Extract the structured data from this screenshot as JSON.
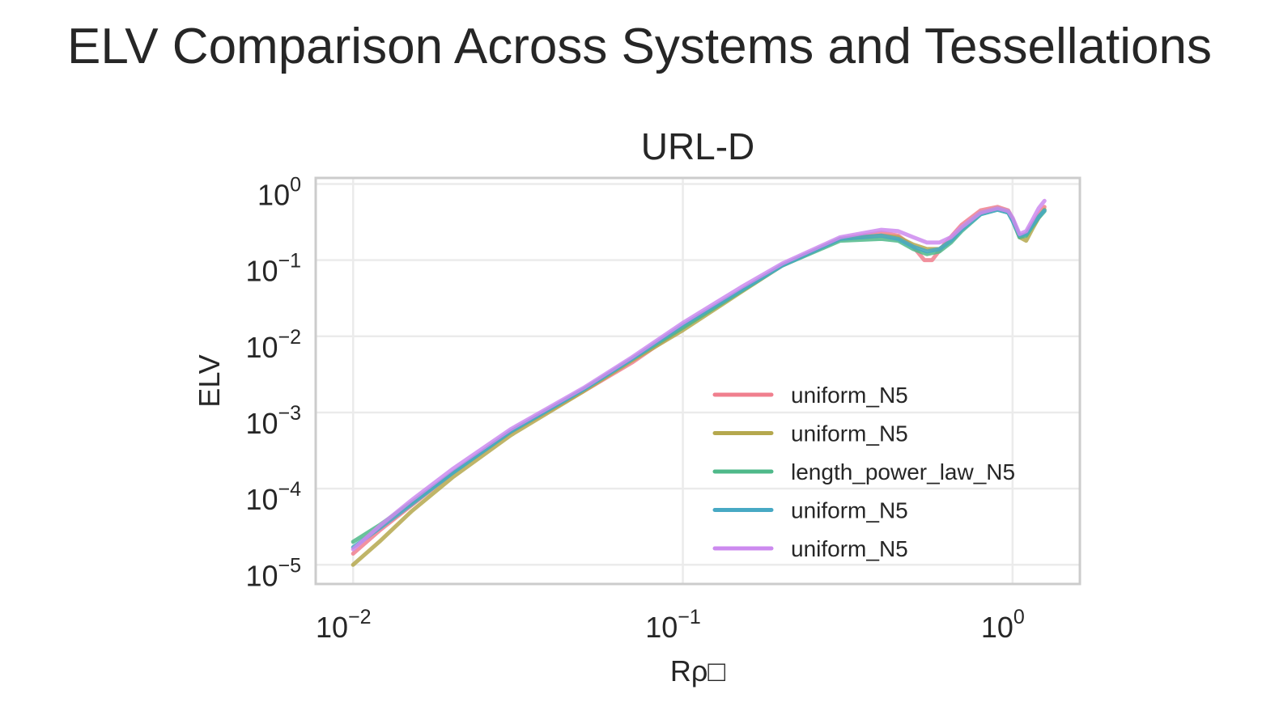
{
  "figure": {
    "title": "ELV Comparison Across Systems and Tessellations"
  },
  "chart_data": {
    "type": "line",
    "title": "URL-D",
    "xlabel": "Rρ□",
    "ylabel": "ELV",
    "xscale": "log",
    "yscale": "log",
    "xlim": [
      0.0077,
      1.6
    ],
    "ylim": [
      5.6e-06,
      1.2
    ],
    "xticks": [
      {
        "value": 0.01,
        "base": "10",
        "exp": "−2"
      },
      {
        "value": 0.1,
        "base": "10",
        "exp": "−1"
      },
      {
        "value": 1,
        "base": "10",
        "exp": "0"
      }
    ],
    "yticks": [
      {
        "value": 1,
        "base": "10",
        "exp": "0"
      },
      {
        "value": 0.1,
        "base": "10",
        "exp": "−1"
      },
      {
        "value": 0.01,
        "base": "10",
        "exp": "−2"
      },
      {
        "value": 0.001,
        "base": "10",
        "exp": "−3"
      },
      {
        "value": 0.0001,
        "base": "10",
        "exp": "−4"
      },
      {
        "value": 1e-05,
        "base": "10",
        "exp": "−5"
      }
    ],
    "grid": true,
    "legend_position": "lower-right",
    "colors": {
      "axis_frame": "#cccccc",
      "grid": "#ebebeb"
    },
    "series": [
      {
        "name": "uniform_N5",
        "color": "#f07f8e",
        "x": [
          0.01,
          0.012,
          0.015,
          0.02,
          0.03,
          0.05,
          0.07,
          0.1,
          0.15,
          0.2,
          0.3,
          0.4,
          0.45,
          0.5,
          0.54,
          0.57,
          0.62,
          0.7,
          0.8,
          0.9,
          0.97,
          1.0,
          1.05,
          1.1,
          1.15,
          1.2,
          1.25
        ],
        "y": [
          1.4e-05,
          2.8e-05,
          6e-05,
          0.00016,
          0.00055,
          0.0019,
          0.0045,
          0.013,
          0.04,
          0.085,
          0.19,
          0.23,
          0.21,
          0.15,
          0.1,
          0.1,
          0.16,
          0.29,
          0.45,
          0.5,
          0.45,
          0.35,
          0.2,
          0.22,
          0.3,
          0.4,
          0.5
        ]
      },
      {
        "name": "uniform_N5",
        "color": "#b5a84e",
        "x": [
          0.01,
          0.012,
          0.015,
          0.02,
          0.03,
          0.05,
          0.07,
          0.1,
          0.15,
          0.2,
          0.3,
          0.4,
          0.45,
          0.5,
          0.55,
          0.6,
          0.65,
          0.7,
          0.8,
          0.9,
          0.97,
          1.0,
          1.05,
          1.1,
          1.15,
          1.2,
          1.25
        ],
        "y": [
          1e-05,
          2e-05,
          5e-05,
          0.00014,
          0.0005,
          0.0019,
          0.0048,
          0.012,
          0.038,
          0.085,
          0.19,
          0.21,
          0.2,
          0.16,
          0.14,
          0.14,
          0.18,
          0.26,
          0.42,
          0.48,
          0.44,
          0.34,
          0.2,
          0.18,
          0.26,
          0.36,
          0.46
        ]
      },
      {
        "name": "length_power_law_N5",
        "color": "#4fb98a",
        "x": [
          0.01,
          0.012,
          0.015,
          0.02,
          0.03,
          0.05,
          0.07,
          0.1,
          0.15,
          0.2,
          0.3,
          0.4,
          0.45,
          0.5,
          0.55,
          0.6,
          0.65,
          0.7,
          0.8,
          0.9,
          0.97,
          1.0,
          1.05,
          1.1,
          1.15,
          1.2,
          1.25
        ],
        "y": [
          2e-05,
          3.3e-05,
          6.5e-05,
          0.00016,
          0.00056,
          0.002,
          0.005,
          0.013,
          0.039,
          0.085,
          0.18,
          0.19,
          0.18,
          0.14,
          0.12,
          0.13,
          0.17,
          0.24,
          0.4,
          0.46,
          0.42,
          0.33,
          0.2,
          0.21,
          0.28,
          0.36,
          0.44
        ]
      },
      {
        "name": "uniform_N5",
        "color": "#47a9c4",
        "x": [
          0.01,
          0.012,
          0.015,
          0.02,
          0.03,
          0.05,
          0.07,
          0.1,
          0.15,
          0.2,
          0.3,
          0.4,
          0.45,
          0.5,
          0.55,
          0.6,
          0.65,
          0.7,
          0.8,
          0.9,
          0.97,
          1.0,
          1.05,
          1.1,
          1.15,
          1.2,
          1.25
        ],
        "y": [
          1.7e-05,
          3e-05,
          6.2e-05,
          0.00016,
          0.00056,
          0.002,
          0.005,
          0.014,
          0.04,
          0.085,
          0.19,
          0.21,
          0.19,
          0.15,
          0.13,
          0.14,
          0.18,
          0.25,
          0.4,
          0.46,
          0.42,
          0.33,
          0.21,
          0.22,
          0.29,
          0.37,
          0.45
        ]
      },
      {
        "name": "uniform_N5",
        "color": "#cc8aef",
        "x": [
          0.01,
          0.012,
          0.015,
          0.02,
          0.03,
          0.05,
          0.07,
          0.1,
          0.15,
          0.2,
          0.3,
          0.4,
          0.45,
          0.5,
          0.55,
          0.6,
          0.65,
          0.7,
          0.8,
          0.9,
          0.97,
          1.0,
          1.05,
          1.1,
          1.15,
          1.2,
          1.25
        ],
        "y": [
          1.6e-05,
          3.2e-05,
          7e-05,
          0.00018,
          0.0006,
          0.0021,
          0.0053,
          0.015,
          0.044,
          0.09,
          0.2,
          0.25,
          0.24,
          0.2,
          0.17,
          0.17,
          0.2,
          0.27,
          0.42,
          0.48,
          0.44,
          0.36,
          0.22,
          0.24,
          0.34,
          0.48,
          0.6
        ]
      }
    ]
  }
}
